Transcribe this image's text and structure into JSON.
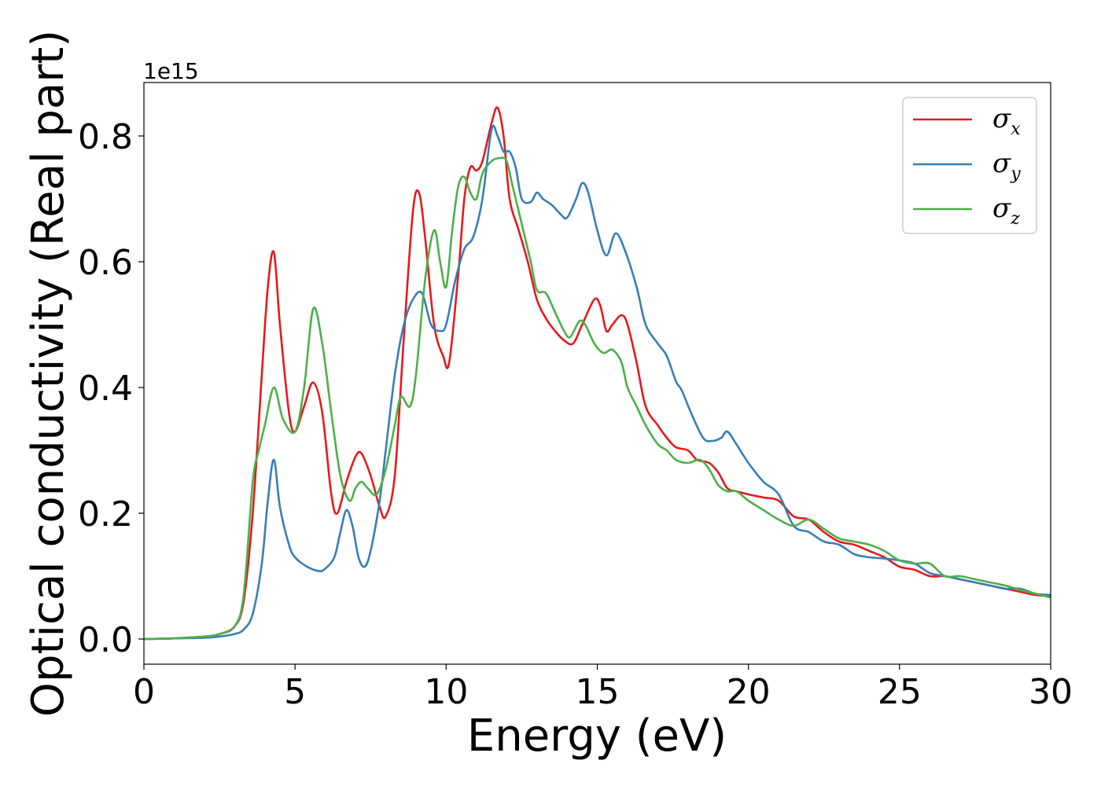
{
  "chart_data": {
    "type": "line",
    "title": "",
    "xlabel": "Energy (eV)",
    "ylabel": "Optical conductivity (Real part)",
    "y_offset_text": "1e15",
    "xlim": [
      0,
      30
    ],
    "ylim": [
      -0.04,
      0.885
    ],
    "x_ticks": [
      0,
      5,
      10,
      15,
      20,
      25,
      30
    ],
    "x_tick_labels": [
      "0",
      "5",
      "10",
      "15",
      "20",
      "25",
      "30"
    ],
    "y_ticks": [
      0.0,
      0.2,
      0.4,
      0.6,
      0.8
    ],
    "y_tick_labels": [
      "0.0",
      "0.2",
      "0.4",
      "0.6",
      "0.8"
    ],
    "grid": false,
    "legend_position": "top-right",
    "series": [
      {
        "name": "σx",
        "symbol": "σ",
        "subscript": "x",
        "color": "#e41a1c",
        "x": [
          0,
          1,
          2,
          2.5,
          3.0,
          3.3,
          3.6,
          3.9,
          4.1,
          4.3,
          4.5,
          4.8,
          5.0,
          5.3,
          5.6,
          5.9,
          6.2,
          6.4,
          6.7,
          7.0,
          7.2,
          7.5,
          7.8,
          8.0,
          8.3,
          8.6,
          8.9,
          9.1,
          9.3,
          9.6,
          9.9,
          10.1,
          10.4,
          10.6,
          10.8,
          11.0,
          11.2,
          11.5,
          11.7,
          11.9,
          12.1,
          12.4,
          12.7,
          13.0,
          13.3,
          13.6,
          13.9,
          14.2,
          14.5,
          14.9,
          15.1,
          15.3,
          15.5,
          15.8,
          16.0,
          16.3,
          16.6,
          17.0,
          17.3,
          17.6,
          18.0,
          18.3,
          18.7,
          19.0,
          19.3,
          19.6,
          20.0,
          20.5,
          21.0,
          21.5,
          22.0,
          22.5,
          23.0,
          23.5,
          24.0,
          24.5,
          25.0,
          25.5,
          26.0,
          26.5,
          27.0,
          27.5,
          28.0,
          28.5,
          29.0,
          29.5,
          30.0
        ],
        "values": [
          0.0,
          0.001,
          0.004,
          0.008,
          0.02,
          0.06,
          0.2,
          0.42,
          0.56,
          0.615,
          0.5,
          0.36,
          0.33,
          0.37,
          0.408,
          0.36,
          0.23,
          0.2,
          0.25,
          0.29,
          0.295,
          0.26,
          0.21,
          0.195,
          0.26,
          0.48,
          0.68,
          0.71,
          0.64,
          0.5,
          0.45,
          0.44,
          0.58,
          0.7,
          0.75,
          0.745,
          0.76,
          0.82,
          0.845,
          0.8,
          0.7,
          0.65,
          0.6,
          0.54,
          0.51,
          0.49,
          0.475,
          0.47,
          0.5,
          0.54,
          0.53,
          0.49,
          0.5,
          0.515,
          0.5,
          0.44,
          0.37,
          0.34,
          0.32,
          0.305,
          0.3,
          0.285,
          0.28,
          0.265,
          0.24,
          0.235,
          0.23,
          0.225,
          0.22,
          0.195,
          0.19,
          0.17,
          0.155,
          0.15,
          0.14,
          0.13,
          0.115,
          0.11,
          0.1,
          0.1,
          0.095,
          0.09,
          0.085,
          0.08,
          0.075,
          0.07,
          0.068
        ]
      },
      {
        "name": "σy",
        "symbol": "σ",
        "subscript": "y",
        "color": "#377eb8",
        "x": [
          0,
          1,
          2,
          2.5,
          3.0,
          3.3,
          3.6,
          3.9,
          4.1,
          4.3,
          4.5,
          4.8,
          5.0,
          5.4,
          5.8,
          6.0,
          6.3,
          6.5,
          6.7,
          6.9,
          7.1,
          7.3,
          7.5,
          7.8,
          8.0,
          8.3,
          8.6,
          8.9,
          9.2,
          9.5,
          9.8,
          10.0,
          10.3,
          10.6,
          10.9,
          11.2,
          11.5,
          11.7,
          11.9,
          12.1,
          12.3,
          12.5,
          12.8,
          13.0,
          13.2,
          13.5,
          13.8,
          14.0,
          14.3,
          14.5,
          14.7,
          15.0,
          15.3,
          15.6,
          15.9,
          16.3,
          16.6,
          17.0,
          17.3,
          17.6,
          17.8,
          18.1,
          18.5,
          18.8,
          19.1,
          19.3,
          19.6,
          20.0,
          20.5,
          21.0,
          21.5,
          22.0,
          22.5,
          23.0,
          23.5,
          24.0,
          24.5,
          25.0,
          25.5,
          26.0,
          26.5,
          27.0,
          27.5,
          28.0,
          28.5,
          29.0,
          29.5,
          30.0
        ],
        "values": [
          0.0,
          0.001,
          0.002,
          0.004,
          0.008,
          0.015,
          0.04,
          0.12,
          0.22,
          0.285,
          0.21,
          0.15,
          0.13,
          0.115,
          0.108,
          0.112,
          0.13,
          0.17,
          0.205,
          0.18,
          0.13,
          0.115,
          0.14,
          0.22,
          0.3,
          0.42,
          0.5,
          0.54,
          0.55,
          0.5,
          0.49,
          0.5,
          0.57,
          0.62,
          0.64,
          0.7,
          0.81,
          0.8,
          0.775,
          0.775,
          0.75,
          0.7,
          0.695,
          0.71,
          0.7,
          0.69,
          0.675,
          0.67,
          0.7,
          0.725,
          0.71,
          0.65,
          0.61,
          0.645,
          0.62,
          0.56,
          0.5,
          0.47,
          0.45,
          0.41,
          0.395,
          0.36,
          0.32,
          0.315,
          0.32,
          0.33,
          0.31,
          0.28,
          0.25,
          0.23,
          0.18,
          0.17,
          0.155,
          0.15,
          0.135,
          0.13,
          0.128,
          0.125,
          0.12,
          0.105,
          0.1,
          0.095,
          0.09,
          0.085,
          0.08,
          0.08,
          0.072,
          0.07
        ]
      },
      {
        "name": "σz",
        "symbol": "σ",
        "subscript": "z",
        "color": "#4daf4a",
        "x": [
          0,
          1,
          2,
          2.5,
          3.0,
          3.3,
          3.6,
          3.8,
          4.0,
          4.3,
          4.6,
          5.0,
          5.3,
          5.6,
          5.9,
          6.2,
          6.5,
          6.8,
          7.0,
          7.2,
          7.4,
          7.7,
          8.0,
          8.3,
          8.5,
          8.8,
          9.0,
          9.3,
          9.6,
          9.8,
          10.0,
          10.2,
          10.4,
          10.6,
          10.8,
          11.0,
          11.2,
          11.5,
          11.8,
          12.0,
          12.2,
          12.5,
          12.8,
          13.0,
          13.3,
          13.6,
          13.9,
          14.1,
          14.4,
          14.6,
          14.9,
          15.2,
          15.5,
          15.8,
          16.0,
          16.3,
          16.6,
          17.0,
          17.3,
          17.6,
          18.0,
          18.4,
          18.7,
          19.0,
          19.3,
          19.6,
          20.0,
          20.5,
          21.0,
          21.5,
          22.0,
          22.5,
          23.0,
          23.5,
          24.0,
          24.5,
          25.0,
          25.5,
          26.0,
          26.5,
          27.0,
          27.5,
          28.0,
          28.5,
          29.0,
          29.5,
          30.0
        ],
        "values": [
          0.0,
          0.001,
          0.004,
          0.008,
          0.02,
          0.07,
          0.25,
          0.3,
          0.34,
          0.4,
          0.35,
          0.33,
          0.4,
          0.525,
          0.47,
          0.36,
          0.26,
          0.22,
          0.24,
          0.25,
          0.24,
          0.23,
          0.27,
          0.34,
          0.385,
          0.37,
          0.42,
          0.57,
          0.65,
          0.6,
          0.56,
          0.65,
          0.72,
          0.735,
          0.71,
          0.7,
          0.74,
          0.76,
          0.765,
          0.76,
          0.72,
          0.66,
          0.6,
          0.555,
          0.55,
          0.52,
          0.49,
          0.48,
          0.505,
          0.5,
          0.47,
          0.455,
          0.46,
          0.44,
          0.4,
          0.37,
          0.34,
          0.31,
          0.3,
          0.285,
          0.28,
          0.285,
          0.27,
          0.245,
          0.235,
          0.235,
          0.22,
          0.205,
          0.19,
          0.18,
          0.19,
          0.175,
          0.16,
          0.155,
          0.15,
          0.14,
          0.125,
          0.12,
          0.12,
          0.1,
          0.1,
          0.095,
          0.09,
          0.085,
          0.078,
          0.072,
          0.066
        ]
      }
    ]
  }
}
